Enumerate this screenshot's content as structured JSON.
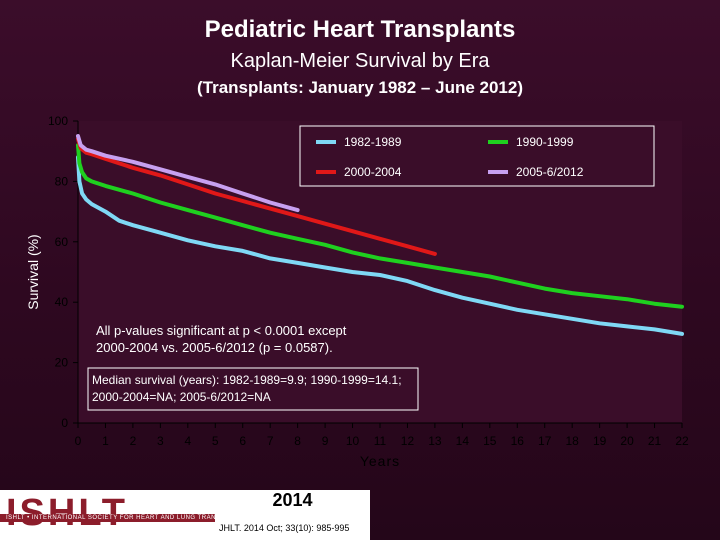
{
  "header": {
    "title": "Pediatric Heart Transplants",
    "subtitle": "Kaplan-Meier Survival by Era",
    "period": "(Transplants: January 1982 – June 2012)"
  },
  "chart_data": {
    "type": "line",
    "xlabel": "Years",
    "ylabel": "Survival (%)",
    "xlim": [
      0,
      22
    ],
    "ylim": [
      0,
      100
    ],
    "xticks": [
      0,
      1,
      2,
      3,
      4,
      5,
      6,
      7,
      8,
      9,
      10,
      11,
      12,
      13,
      14,
      15,
      16,
      17,
      18,
      19,
      20,
      21,
      22
    ],
    "yticks": [
      0,
      20,
      40,
      60,
      80,
      100
    ],
    "legend_position": "top-right",
    "series": [
      {
        "name": "1982-1989",
        "color": "#7fd8f5",
        "points": [
          [
            0,
            88
          ],
          [
            0.05,
            80
          ],
          [
            0.15,
            76
          ],
          [
            0.3,
            74
          ],
          [
            0.5,
            72.5
          ],
          [
            1,
            70
          ],
          [
            1.5,
            67
          ],
          [
            2,
            65.5
          ],
          [
            3,
            63
          ],
          [
            4,
            60.5
          ],
          [
            5,
            58.5
          ],
          [
            6,
            57
          ],
          [
            7,
            54.5
          ],
          [
            8,
            53
          ],
          [
            9,
            51.5
          ],
          [
            10,
            50
          ],
          [
            11,
            49
          ],
          [
            12,
            47
          ],
          [
            13,
            44
          ],
          [
            14,
            41.5
          ],
          [
            15,
            39.5
          ],
          [
            16,
            37.5
          ],
          [
            17,
            36
          ],
          [
            18,
            34.5
          ],
          [
            19,
            33
          ],
          [
            20,
            32
          ],
          [
            21,
            31
          ],
          [
            22,
            29.5
          ]
        ]
      },
      {
        "name": "1990-1999",
        "color": "#1fd01f",
        "points": [
          [
            0,
            92
          ],
          [
            0.05,
            86
          ],
          [
            0.15,
            83
          ],
          [
            0.3,
            81
          ],
          [
            0.5,
            80
          ],
          [
            1,
            78.5
          ],
          [
            2,
            76
          ],
          [
            3,
            73
          ],
          [
            4,
            70.5
          ],
          [
            5,
            68
          ],
          [
            6,
            65.5
          ],
          [
            7,
            63
          ],
          [
            8,
            61
          ],
          [
            9,
            59
          ],
          [
            10,
            56.5
          ],
          [
            11,
            54.5
          ],
          [
            12,
            53
          ],
          [
            13,
            51.5
          ],
          [
            14,
            50
          ],
          [
            15,
            48.5
          ],
          [
            16,
            46.5
          ],
          [
            17,
            44.5
          ],
          [
            18,
            43
          ],
          [
            19,
            42
          ],
          [
            20,
            41
          ],
          [
            21,
            39.5
          ],
          [
            22,
            38.5
          ]
        ]
      },
      {
        "name": "2000-2004",
        "color": "#e01818",
        "points": [
          [
            0,
            94
          ],
          [
            0.1,
            91
          ],
          [
            0.3,
            89.5
          ],
          [
            0.5,
            89
          ],
          [
            1,
            87.5
          ],
          [
            2,
            84.5
          ],
          [
            3,
            82
          ],
          [
            4,
            79
          ],
          [
            5,
            76
          ],
          [
            6,
            73.5
          ],
          [
            7,
            71
          ],
          [
            8,
            68.5
          ],
          [
            9,
            66
          ],
          [
            10,
            63.5
          ],
          [
            11,
            61
          ],
          [
            12,
            58.5
          ],
          [
            13,
            56
          ]
        ]
      },
      {
        "name": "2005-6/2012",
        "color": "#c7a0f0",
        "points": [
          [
            0,
            95
          ],
          [
            0.1,
            92
          ],
          [
            0.3,
            90.5
          ],
          [
            0.5,
            90
          ],
          [
            1,
            88.5
          ],
          [
            2,
            86.5
          ],
          [
            3,
            84
          ],
          [
            4,
            81.5
          ],
          [
            5,
            79
          ],
          [
            6,
            76
          ],
          [
            7,
            73
          ],
          [
            8,
            70.5
          ]
        ]
      }
    ],
    "annotations": [
      {
        "id": "pvalues",
        "lines": [
          "All p-values significant at p < 0.0001 except",
          "2000-2004 vs. 2005-6/2012 (p = 0.0587)."
        ]
      },
      {
        "id": "median",
        "lines": [
          "Median survival (years): 1982-1989=9.9; 1990-1999=14.1;",
          "2000-2004=NA; 2005-6/2012=NA"
        ]
      }
    ]
  },
  "footer": {
    "logo": "ISHLT",
    "logo_tagline": "ISHLT • INTERNATIONAL SOCIETY FOR HEART AND LUNG TRANSPLANTATION",
    "year": "2014",
    "reference": "JHLT. 2014 Oct; 33(10): 985-995"
  }
}
